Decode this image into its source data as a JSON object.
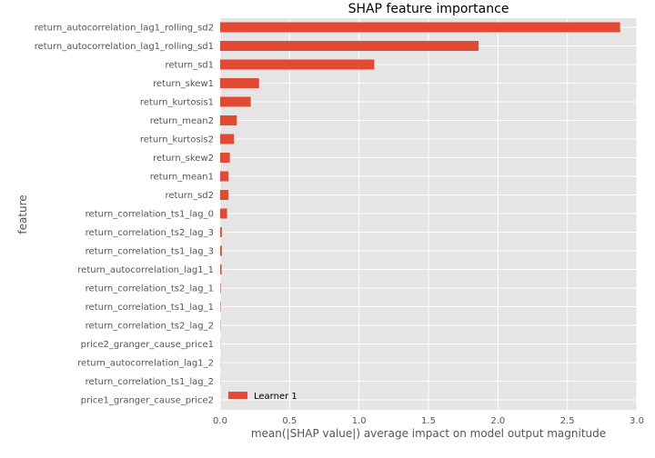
{
  "chart_data": {
    "type": "bar",
    "orientation": "horizontal",
    "title": "SHAP feature importance",
    "xlabel": "mean(|SHAP value|) average impact on model output magnitude",
    "ylabel": "feature",
    "xlim": [
      0,
      3.0
    ],
    "xticks": [
      0.0,
      0.5,
      1.0,
      1.5,
      2.0,
      2.5,
      3.0
    ],
    "xtick_labels": [
      "0.0",
      "0.5",
      "1.0",
      "1.5",
      "2.0",
      "2.5",
      "3.0"
    ],
    "grid": true,
    "legend_position": "lower-left",
    "categories": [
      "return_autocorrelation_lag1_rolling_sd2",
      "return_autocorrelation_lag1_rolling_sd1",
      "return_sd1",
      "return_skew1",
      "return_kurtosis1",
      "return_mean2",
      "return_kurtosis2",
      "return_skew2",
      "return_mean1",
      "return_sd2",
      "return_correlation_ts1_lag_0",
      "return_correlation_ts2_lag_3",
      "return_correlation_ts1_lag_3",
      "return_autocorrelation_lag1_1",
      "return_correlation_ts2_lag_1",
      "return_correlation_ts1_lag_1",
      "return_correlation_ts2_lag_2",
      "price2_granger_cause_price1",
      "return_autocorrelation_lag1_2",
      "return_correlation_ts1_lag_2",
      "price1_granger_cause_price2"
    ],
    "series": [
      {
        "name": "Learner 1",
        "color": "#e24a33",
        "values": [
          2.88,
          1.86,
          1.11,
          0.28,
          0.22,
          0.12,
          0.1,
          0.07,
          0.06,
          0.06,
          0.05,
          0.012,
          0.012,
          0.01,
          0.004,
          0.003,
          0.002,
          0.001,
          0.001,
          0.001,
          0.0
        ]
      }
    ],
    "colors": {
      "background": "#e5e5e5",
      "grid": "#ffffff",
      "bar": "#e24a33"
    }
  }
}
